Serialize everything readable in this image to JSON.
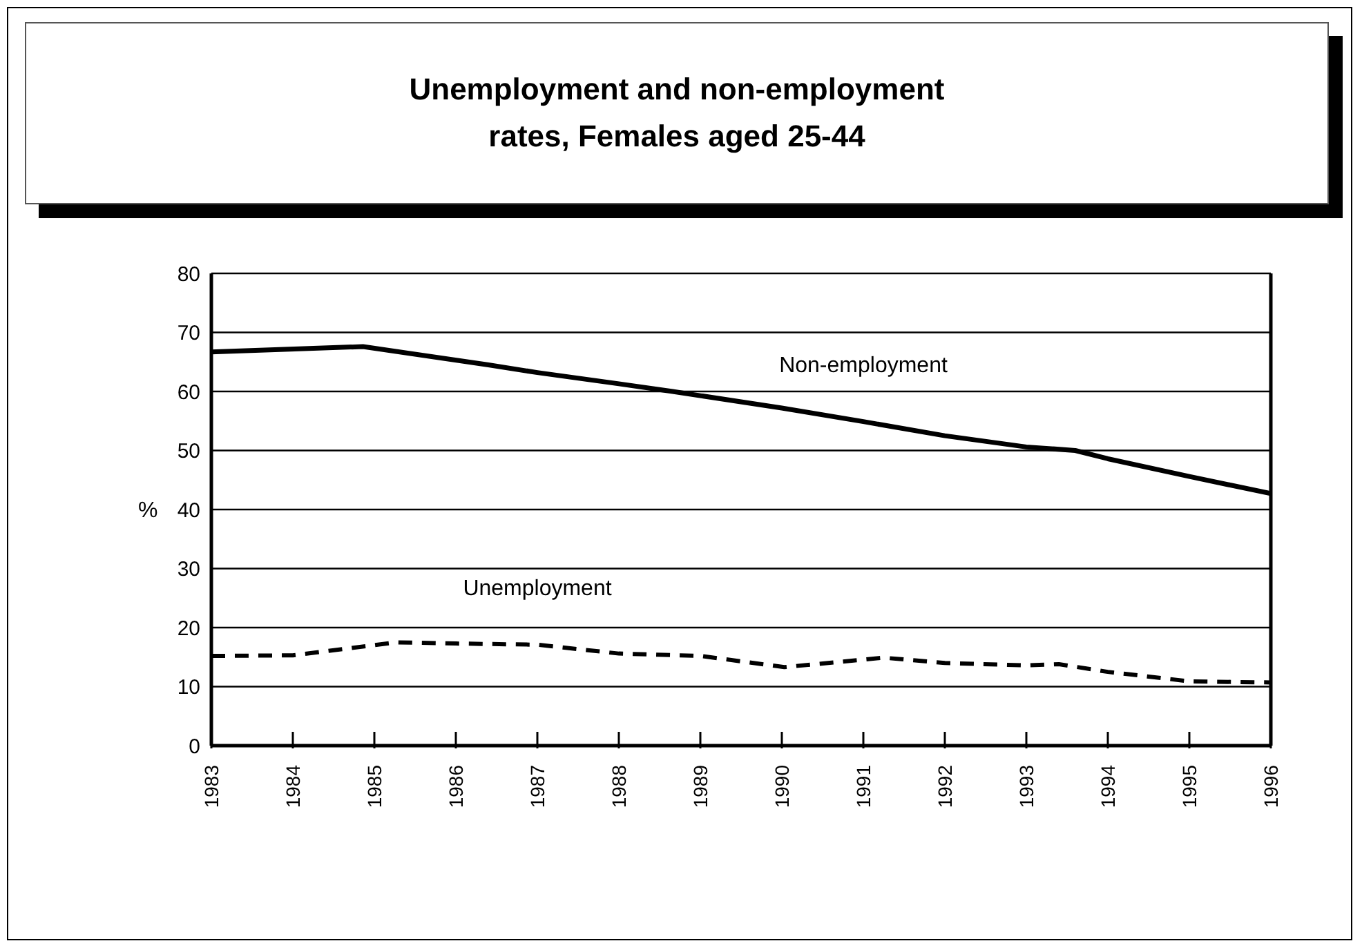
{
  "chart_data": {
    "type": "line",
    "title": "Unemployment and non-employment\nrates, Females aged 25-44",
    "ylabel": "%",
    "xlim": [
      1983,
      1996
    ],
    "xticks": [
      1983,
      1984,
      1985,
      1986,
      1987,
      1988,
      1989,
      1990,
      1991,
      1992,
      1993,
      1994,
      1995,
      1996
    ],
    "ylim": [
      0,
      80
    ],
    "yticks": [
      0,
      10,
      20,
      30,
      40,
      50,
      60,
      70,
      80
    ],
    "grid": "y",
    "marker": "none",
    "series": [
      {
        "name": "Non-employment",
        "color": "#000000",
        "line_style": "solid",
        "x": [
          1983,
          1984.86,
          1986.4,
          1987,
          1988,
          1988.66,
          1990,
          1991,
          1992,
          1993,
          1993.6,
          1994,
          1995,
          1996
        ],
        "values": [
          66.7,
          67.6,
          64.5,
          63.2,
          61.3,
          60,
          57.2,
          54.9,
          52.5,
          50.6,
          50,
          48.6,
          45.6,
          42.7
        ]
      },
      {
        "name": "Unemployment",
        "color": "#000000",
        "line_style": "dashed",
        "x": [
          1983,
          1984,
          1985.27,
          1986,
          1987,
          1988,
          1989,
          1990.03,
          1991.25,
          1992,
          1993,
          1993.4,
          1994,
          1995,
          1996
        ],
        "values": [
          15.2,
          15.3,
          17.5,
          17.3,
          17.1,
          15.6,
          15.2,
          13.3,
          14.9,
          14,
          13.6,
          13.8,
          12.5,
          10.9,
          10.7
        ]
      }
    ]
  }
}
